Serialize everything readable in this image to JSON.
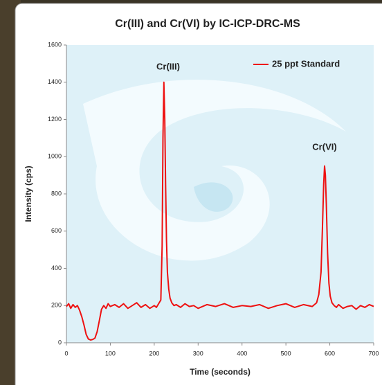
{
  "chart_data": {
    "type": "line",
    "title": "Cr(III) and Cr(VI) by IC-ICP-DRC-MS",
    "x_label": "Time (seconds)",
    "y_label": "Intensity (cps)",
    "annotations": [
      "Cr(III)",
      "Cr(VI)"
    ],
    "legend_position": "upper right",
    "x": [
      0,
      5,
      10,
      15,
      20,
      25,
      30,
      35,
      40,
      45,
      50,
      55,
      60,
      65,
      70,
      75,
      80,
      85,
      90,
      95,
      100,
      110,
      120,
      130,
      140,
      150,
      160,
      170,
      180,
      190,
      200,
      205,
      210,
      215,
      218,
      220,
      222,
      224,
      226,
      228,
      230,
      233,
      236,
      240,
      245,
      250,
      260,
      270,
      280,
      290,
      300,
      320,
      340,
      360,
      380,
      400,
      420,
      440,
      460,
      480,
      500,
      520,
      540,
      560,
      570,
      575,
      580,
      583,
      586,
      588,
      590,
      592,
      595,
      598,
      601,
      605,
      610,
      615,
      620,
      630,
      640,
      650,
      660,
      670,
      680,
      690,
      700
    ],
    "series": [
      {
        "name": "25 ppt Standard",
        "color": "#ee1111",
        "values": [
          195,
          210,
          185,
          205,
          190,
          200,
          175,
          140,
          95,
          45,
          20,
          15,
          18,
          25,
          60,
          120,
          180,
          200,
          185,
          210,
          195,
          205,
          190,
          210,
          185,
          200,
          215,
          190,
          205,
          185,
          200,
          190,
          210,
          230,
          520,
          1100,
          1400,
          1200,
          850,
          550,
          380,
          290,
          240,
          215,
          200,
          205,
          190,
          210,
          195,
          200,
          185,
          205,
          195,
          210,
          190,
          200,
          195,
          205,
          185,
          200,
          210,
          190,
          205,
          195,
          215,
          260,
          380,
          600,
          850,
          950,
          900,
          750,
          480,
          320,
          250,
          215,
          200,
          190,
          205,
          185,
          195,
          200,
          180,
          200,
          190,
          205,
          195
        ]
      }
    ],
    "xlim": [
      0,
      700
    ],
    "xticks": [
      0,
      100,
      200,
      300,
      400,
      500,
      600,
      700
    ],
    "ylim": [
      0,
      1600
    ],
    "yticks": [
      0,
      200,
      400,
      600,
      800,
      1000,
      1200,
      1400,
      1600
    ]
  }
}
